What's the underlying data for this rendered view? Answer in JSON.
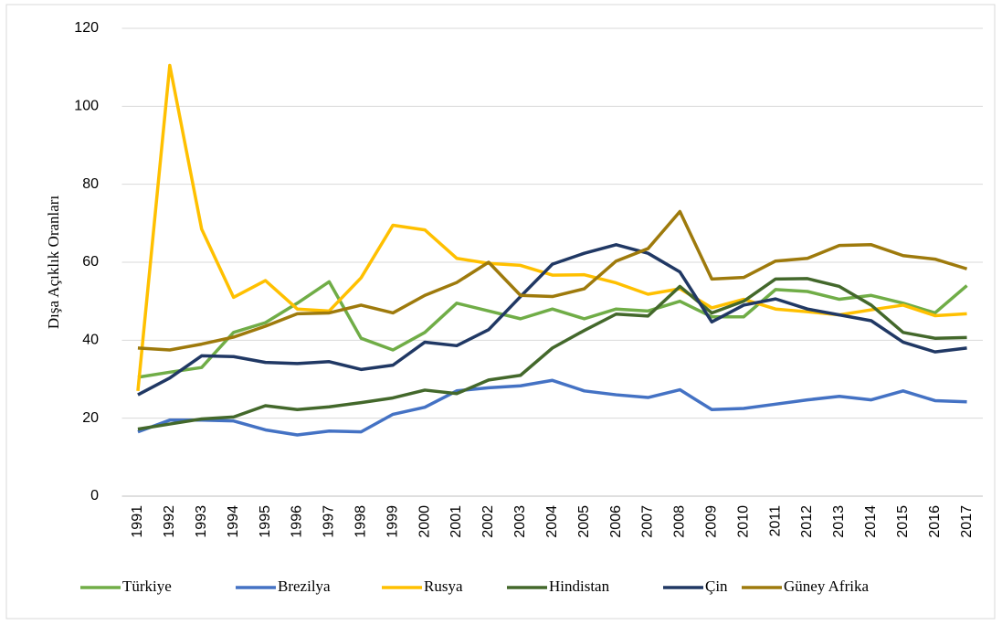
{
  "chart_data": {
    "type": "line",
    "y_label": "Dışa Açıklık Oranları",
    "categories": [
      "1991",
      "1992",
      "1993",
      "1994",
      "1995",
      "1996",
      "1997",
      "1998",
      "1999",
      "2000",
      "2001",
      "2002",
      "2003",
      "2004",
      "2005",
      "2006",
      "2007",
      "2008",
      "2009",
      "2010",
      "2011",
      "2012",
      "2013",
      "2014",
      "2015",
      "2016",
      "2017"
    ],
    "series": [
      {
        "name": "Türkiye",
        "color": "#70ad47",
        "values": [
          30.5,
          31.8,
          33,
          42,
          44.5,
          49.5,
          55,
          40.5,
          37.5,
          42,
          49.5,
          47.5,
          45.5,
          48,
          45.5,
          48,
          47.5,
          50,
          46,
          46,
          53,
          52.5,
          50.5,
          51.5,
          49.5,
          47,
          54
        ]
      },
      {
        "name": "Brezilya",
        "color": "#4472c4",
        "values": [
          16.5,
          19.5,
          19.5,
          19.3,
          17,
          15.7,
          16.7,
          16.5,
          21,
          22.8,
          27,
          27.8,
          28.3,
          29.7,
          27,
          26,
          25.3,
          27.3,
          22.2,
          22.5,
          23.6,
          24.7,
          25.6,
          24.7,
          27,
          24.5,
          24.2
        ]
      },
      {
        "name": "Rusya",
        "color": "#ffc000",
        "values": [
          27,
          110.5,
          68.5,
          51,
          55.3,
          48,
          47.5,
          56,
          69.5,
          68.3,
          61,
          59.7,
          59.2,
          56.7,
          56.8,
          54.7,
          51.8,
          53.2,
          48.3,
          50.5,
          48,
          47.3,
          46.5,
          47.8,
          49,
          46.3,
          46.8
        ]
      },
      {
        "name": "Hindistan",
        "color": "#43682b",
        "values": [
          17.2,
          18.5,
          19.8,
          20.3,
          23.2,
          22.2,
          22.9,
          24,
          25.2,
          27.2,
          26.3,
          29.8,
          31,
          38,
          42.5,
          46.7,
          46.2,
          53.8,
          47,
          50,
          55.7,
          55.8,
          53.8,
          49,
          42,
          40.5,
          40.7
        ]
      },
      {
        "name": "Çin",
        "color": "#203864",
        "values": [
          26,
          30.3,
          36,
          35.8,
          34.3,
          34,
          34.5,
          32.5,
          33.6,
          39.5,
          38.6,
          42.7,
          51.2,
          59.5,
          62.3,
          64.5,
          62.3,
          57.5,
          44.7,
          49,
          50.6,
          48,
          46.5,
          45,
          39.5,
          37,
          38
        ]
      },
      {
        "name": "Güney Afrika",
        "color": "#9e7a0c",
        "values": [
          38,
          37.5,
          39,
          40.8,
          43.6,
          46.8,
          47,
          49,
          47,
          51.5,
          54.8,
          60,
          51.5,
          51.2,
          53.2,
          60.3,
          63.5,
          73,
          55.7,
          56.1,
          60.3,
          61,
          64.3,
          64.5,
          61.7,
          60.8,
          58.3
        ]
      }
    ],
    "ylim": [
      0,
      120
    ],
    "yticks": [
      0,
      20,
      40,
      60,
      80,
      100,
      120
    ],
    "grid": true,
    "legend": "bottom"
  }
}
